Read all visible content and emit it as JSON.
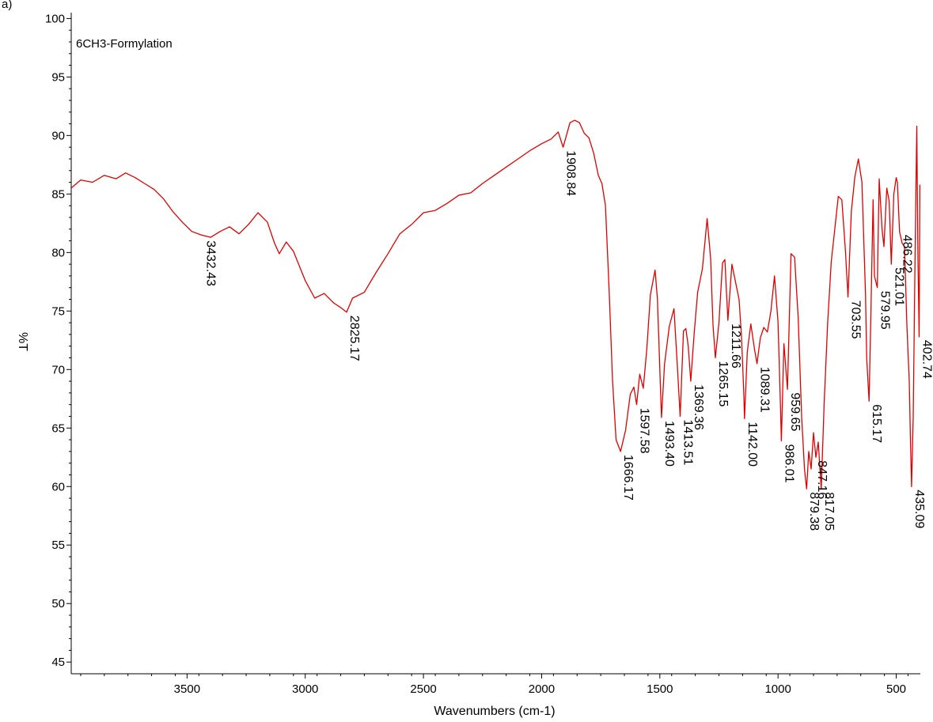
{
  "panel_label": "a)",
  "chart_data": {
    "type": "line",
    "title": "6CH3-Formylation",
    "xlabel": "Wavenumbers (cm-1)",
    "ylabel": "%T",
    "xlim": [
      3990,
      398
    ],
    "ylim": [
      44,
      100.5
    ],
    "x_reversed": true,
    "grid": false,
    "line_color": "#e00000",
    "xticks": [
      3500,
      3000,
      2500,
      2000,
      1500,
      1000,
      500
    ],
    "yticks": [
      45,
      50,
      55,
      60,
      65,
      70,
      75,
      80,
      85,
      90,
      95,
      100
    ],
    "series": [
      {
        "x": [
          3990,
          3950,
          3900,
          3850,
          3800,
          3760,
          3720,
          3680,
          3640,
          3600,
          3560,
          3520,
          3480,
          3440,
          3400,
          3360,
          3320,
          3280,
          3240,
          3200,
          3160,
          3130,
          3110,
          3080,
          3050,
          3000,
          2960,
          2920,
          2880,
          2850,
          2825,
          2800,
          2750,
          2700,
          2650,
          2600,
          2550,
          2500,
          2450,
          2400,
          2350,
          2300,
          2250,
          2200,
          2150,
          2100,
          2050,
          2000,
          1960,
          1930,
          1909,
          1880,
          1860,
          1840,
          1820,
          1800,
          1780,
          1760,
          1745,
          1730,
          1715,
          1700,
          1685,
          1666,
          1645,
          1625,
          1610,
          1598,
          1585,
          1570,
          1555,
          1540,
          1520,
          1510,
          1500,
          1493,
          1480,
          1460,
          1440,
          1425,
          1414,
          1400,
          1390,
          1380,
          1369,
          1355,
          1340,
          1320,
          1300,
          1285,
          1275,
          1265,
          1250,
          1235,
          1225,
          1212,
          1195,
          1180,
          1165,
          1155,
          1145,
          1142,
          1130,
          1115,
          1100,
          1089,
          1075,
          1060,
          1045,
          1030,
          1015,
          1000,
          990,
          986,
          975,
          960,
          945,
          930,
          915,
          900,
          888,
          879,
          870,
          860,
          850,
          840,
          830,
          817,
          805,
          790,
          775,
          760,
          745,
          730,
          715,
          704,
          690,
          675,
          660,
          645,
          630,
          625,
          615,
          610,
          598,
          592,
          580,
          572,
          560,
          552,
          540,
          530,
          521,
          510,
          500,
          495,
          486,
          475,
          465,
          455,
          445,
          440,
          435,
          428,
          420,
          413,
          408,
          403,
          400
        ],
        "y": [
          85.5,
          86.2,
          86.0,
          86.6,
          86.3,
          86.8,
          86.4,
          85.9,
          85.4,
          84.6,
          83.5,
          82.6,
          81.8,
          81.5,
          81.3,
          81.8,
          82.2,
          81.6,
          82.4,
          83.4,
          82.6,
          80.8,
          79.9,
          80.9,
          80.1,
          77.6,
          76.1,
          76.5,
          75.7,
          75.3,
          74.9,
          76.1,
          76.6,
          78.3,
          79.9,
          81.6,
          82.4,
          83.4,
          83.6,
          84.2,
          84.9,
          85.1,
          85.9,
          86.6,
          87.3,
          88.0,
          88.7,
          89.3,
          89.7,
          90.3,
          89.0,
          91.1,
          91.3,
          91.1,
          90.2,
          89.8,
          88.5,
          86.6,
          85.9,
          84.0,
          77.0,
          69.0,
          64.0,
          63.0,
          64.8,
          67.9,
          68.5,
          67.0,
          69.6,
          68.4,
          71.8,
          76.4,
          78.5,
          76.0,
          70.0,
          65.9,
          70.5,
          73.7,
          75.2,
          70.0,
          66.0,
          73.3,
          73.5,
          72.0,
          69.0,
          73.0,
          76.6,
          78.6,
          82.9,
          79.5,
          73.8,
          71.0,
          74.0,
          79.1,
          79.4,
          74.2,
          79.0,
          77.5,
          76.0,
          73.0,
          68.0,
          65.8,
          71.5,
          73.9,
          71.8,
          70.5,
          72.7,
          73.6,
          73.2,
          75.0,
          78.0,
          74.0,
          67.0,
          63.9,
          72.2,
          68.3,
          79.9,
          79.6,
          74.5,
          66.0,
          61.5,
          59.8,
          63.0,
          61.5,
          64.6,
          62.5,
          63.8,
          59.8,
          67.0,
          74.0,
          79.2,
          82.0,
          84.8,
          84.5,
          80.2,
          76.2,
          83.5,
          86.5,
          88.0,
          86.0,
          76.5,
          71.0,
          67.3,
          72.0,
          84.5,
          78.0,
          77.0,
          86.3,
          82.0,
          80.5,
          85.5,
          84.4,
          79.0,
          85.0,
          86.4,
          86.0,
          81.8,
          80.8,
          80.5,
          73.8,
          69.0,
          64.0,
          60.0,
          66.0,
          80.0,
          90.8,
          79.5,
          72.8,
          85.8
        ]
      }
    ],
    "peak_labels": [
      {
        "x": 3432.43,
        "y": 81.3,
        "text": "3432.43"
      },
      {
        "x": 2825.17,
        "y": 74.9,
        "text": "2825.17"
      },
      {
        "x": 1908.84,
        "y": 89.0,
        "text": "1908.84"
      },
      {
        "x": 1666.17,
        "y": 63.0,
        "text": "1666.17"
      },
      {
        "x": 1597.58,
        "y": 67.0,
        "text": "1597.58"
      },
      {
        "x": 1493.4,
        "y": 65.9,
        "text": "1493.40"
      },
      {
        "x": 1413.51,
        "y": 66.0,
        "text": "1413.51"
      },
      {
        "x": 1369.36,
        "y": 69.0,
        "text": "1369.36"
      },
      {
        "x": 1265.15,
        "y": 71.0,
        "text": "1265.15"
      },
      {
        "x": 1211.66,
        "y": 74.2,
        "text": "1211.66"
      },
      {
        "x": 1142.0,
        "y": 65.8,
        "text": "1142.00"
      },
      {
        "x": 1089.31,
        "y": 70.5,
        "text": "1089.31"
      },
      {
        "x": 986.01,
        "y": 63.9,
        "text": "986.01"
      },
      {
        "x": 959.65,
        "y": 68.3,
        "text": "959.65"
      },
      {
        "x": 879.38,
        "y": 59.8,
        "text": "879.38"
      },
      {
        "x": 847.16,
        "y": 62.5,
        "text": "847.16"
      },
      {
        "x": 817.05,
        "y": 59.8,
        "text": "817.05"
      },
      {
        "x": 703.55,
        "y": 76.2,
        "text": "703.55"
      },
      {
        "x": 615.17,
        "y": 67.3,
        "text": "615.17"
      },
      {
        "x": 579.95,
        "y": 77.0,
        "text": "579.95"
      },
      {
        "x": 521.01,
        "y": 79.0,
        "text": "521.01"
      },
      {
        "x": 486.22,
        "y": 81.8,
        "text": "486.22"
      },
      {
        "x": 435.09,
        "y": 60.0,
        "text": "435.09"
      },
      {
        "x": 402.74,
        "y": 72.8,
        "text": "402.74"
      }
    ]
  }
}
